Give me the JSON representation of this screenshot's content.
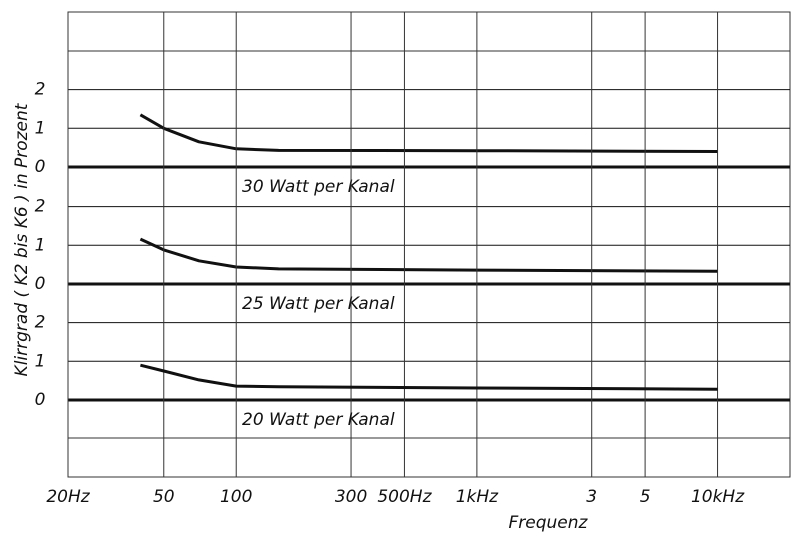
{
  "chart_data": [
    {
      "type": "line",
      "ylabel": "Klirrgrad ( K2 bis K6 ) in Prozent",
      "annotation": "30 Watt per Kanal",
      "x": [
        40,
        50,
        70,
        100,
        150,
        1000,
        10000
      ],
      "values": [
        1.35,
        1.0,
        0.65,
        0.47,
        0.43,
        0.42,
        0.4
      ],
      "xlim": [
        20,
        20000
      ],
      "log_x": true,
      "ylim": [
        0,
        2
      ],
      "yticks": [
        0,
        1,
        2
      ],
      "color": "#111111"
    },
    {
      "type": "line",
      "annotation": "25 Watt per Kanal",
      "x": [
        40,
        50,
        70,
        100,
        150,
        1000,
        10000
      ],
      "values": [
        1.16,
        0.88,
        0.6,
        0.44,
        0.39,
        0.36,
        0.33
      ],
      "xlim": [
        20,
        20000
      ],
      "log_x": true,
      "ylim": [
        0,
        2
      ],
      "yticks": [
        0,
        1,
        2
      ],
      "color": "#111111"
    },
    {
      "type": "line",
      "annotation": "20 Watt per Kanal",
      "xlabel": "Frequenz",
      "x": [
        40,
        50,
        70,
        100,
        150,
        1000,
        10000
      ],
      "values": [
        0.9,
        0.75,
        0.52,
        0.36,
        0.34,
        0.31,
        0.28
      ],
      "xlim": [
        20,
        20000
      ],
      "log_x": true,
      "ylim": [
        0,
        2
      ],
      "yticks": [
        0,
        1,
        2
      ],
      "color": "#111111",
      "xticks": [
        {
          "value": 20,
          "label": "20Hz"
        },
        50,
        100,
        300,
        {
          "value": 500,
          "label": "500Hz"
        },
        {
          "value": 1000,
          "label": "1kHz"
        },
        {
          "value": 3000,
          "label": "3"
        },
        {
          "value": 5000,
          "label": "5"
        },
        {
          "value": 10000,
          "label": "10kHz"
        }
      ]
    }
  ]
}
